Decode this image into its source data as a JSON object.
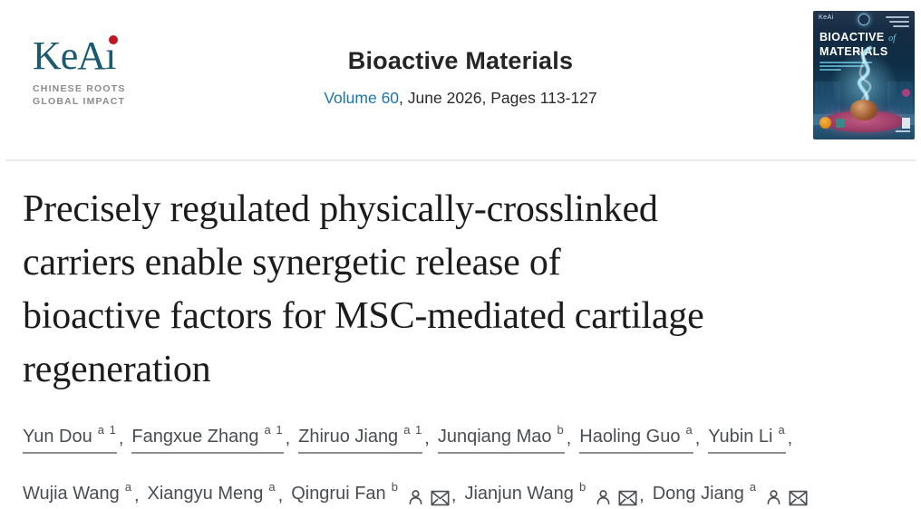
{
  "publisher_logo": {
    "name": "KeAi",
    "name_stem": "KeA",
    "tagline_line1": "CHINESE ROOTS",
    "tagline_line2": "GLOBAL IMPACT"
  },
  "journal": {
    "title": "Bioactive Materials",
    "volume_link": "Volume 60",
    "issue_info": ", June 2026, Pages 113-127",
    "cover": {
      "masthead_publisher": "KeAi",
      "masthead_line1": "BIOACTIVE",
      "masthead_of": "of",
      "masthead_line2": "MATERIALS"
    }
  },
  "article": {
    "title_full": "Precisely regulated physically-crosslinked carriers enable synergetic release of bioactive factors for MSC-mediated cartilage regeneration",
    "title_lines": [
      "Precisely regulated physically-crosslinked",
      "carriers enable synergetic release of",
      "bioactive factors for MSC-mediated cartilage",
      "regeneration"
    ]
  },
  "authors": {
    "separator": ",",
    "list": [
      {
        "name": "Yun Dou",
        "affiliations": "a 1",
        "corresponding": false
      },
      {
        "name": "Fangxue Zhang",
        "affiliations": "a 1",
        "corresponding": false
      },
      {
        "name": "Zhiruo Jiang",
        "affiliations": "a 1",
        "corresponding": false
      },
      {
        "name": "Junqiang Mao",
        "affiliations": "b",
        "corresponding": false
      },
      {
        "name": "Haoling Guo",
        "affiliations": "a",
        "corresponding": false
      },
      {
        "name": "Yubin Li",
        "affiliations": "a",
        "corresponding": false,
        "break_after": true
      },
      {
        "name": "Wujia Wang",
        "affiliations": "a",
        "corresponding": false
      },
      {
        "name": "Xiangyu Meng",
        "affiliations": "a",
        "corresponding": false
      },
      {
        "name": "Qingrui Fan",
        "affiliations": "b",
        "corresponding": true
      },
      {
        "name": "Jianjun Wang",
        "affiliations": "b",
        "corresponding": true
      },
      {
        "name": "Dong Jiang",
        "affiliations": "a",
        "corresponding": true
      }
    ]
  },
  "colors": {
    "link_blue": "#1c76ad",
    "keai_teal": "#1b5a70",
    "keai_red": "#c01724",
    "divider_gray": "#e9e9e9",
    "author_gray": "#4a4e52",
    "author_underline": "#8f8f8f",
    "title_ink": "#1c1c1c"
  }
}
